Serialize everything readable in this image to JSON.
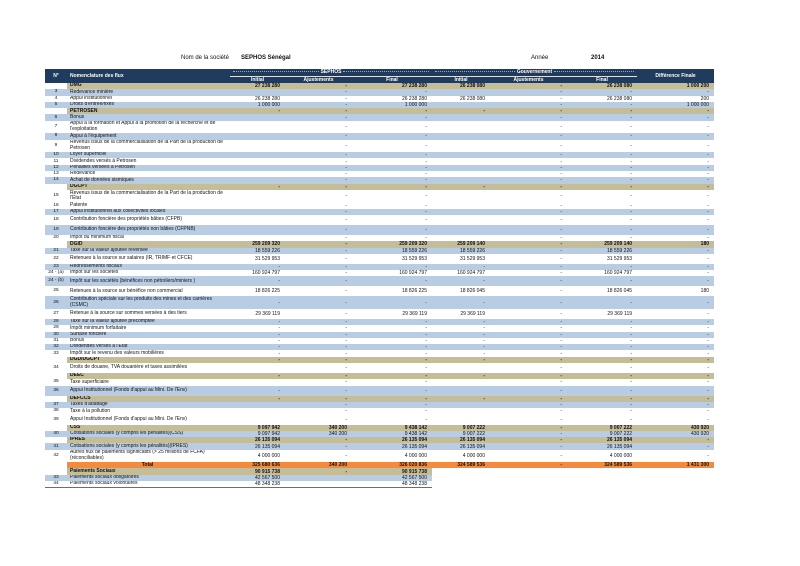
{
  "page": {
    "company_label": "Nom de la société",
    "company_value": "SEPHOS Sénégal",
    "year_label": "Année",
    "year_value": "2014"
  },
  "colors": {
    "header_navy": "#1F3B5D",
    "agency_tan": "#C4BD97",
    "stripe_blue": "#B8CCE4",
    "total_orange": "#F68A3C"
  },
  "table": {
    "header": {
      "num": "N°",
      "flux": "Nomenclature des flux",
      "sephos": "SEPHOS",
      "gouvernement": "Gouvernement",
      "difference": "Différence Finale",
      "sub": [
        "Initial",
        "Ajustements",
        "Final",
        "Initial",
        "Ajustements",
        "Final"
      ]
    },
    "rows": [
      {
        "num": "",
        "label": "DMG",
        "style": "group",
        "h": "s",
        "cells": [
          "27 238 280",
          "-",
          "27 238 280",
          "26 238 080",
          "-",
          "26 238 080",
          "1 000 200"
        ]
      },
      {
        "num": "3",
        "label": "Redevance minière",
        "style": "b",
        "h": "s",
        "cells": [
          "",
          "-",
          "-",
          "",
          "-",
          "-",
          "-"
        ]
      },
      {
        "num": "4",
        "label": "Appui institutionnel",
        "style": "w",
        "h": "s",
        "cells": [
          "26 238 280",
          "-",
          "26 238 280",
          "26 238 080",
          "-",
          "26 238 080",
          "200"
        ]
      },
      {
        "num": "5",
        "label": "Droits d'entrée/fixes",
        "style": "b",
        "h": "s",
        "cells": [
          "1 000 000",
          "-",
          "1 000 000",
          "",
          "-",
          "-",
          "1 000 000"
        ]
      },
      {
        "num": "",
        "label": "PETROSEN",
        "style": "group",
        "h": "s",
        "cells": [
          "-",
          "-",
          "-",
          "-",
          "-",
          "-",
          "-"
        ]
      },
      {
        "num": "6",
        "label": "Bonus",
        "style": "b",
        "h": "s",
        "cells": [
          "",
          "-",
          "-",
          "",
          "-",
          "-",
          "-"
        ]
      },
      {
        "num": "7",
        "label": "Appui à la formation et Appui à la promotion de la recherche et de l'exploitation",
        "style": "w",
        "h": "l",
        "cells": [
          "",
          "-",
          "-",
          "",
          "-",
          "-",
          "-"
        ]
      },
      {
        "num": "8",
        "label": "Appui à l'équipement",
        "style": "b",
        "h": "s",
        "cells": [
          "",
          "-",
          "-",
          "",
          "-",
          "-",
          "-"
        ]
      },
      {
        "num": "9",
        "label": "Revenus issus de la commercialisation de la Part de la production de Petrosen",
        "style": "w",
        "h": "l",
        "cells": [
          "",
          "-",
          "-",
          "",
          "-",
          "-",
          "-"
        ]
      },
      {
        "num": "10",
        "label": "Loyer superficiel",
        "style": "b",
        "h": "s",
        "cells": [
          "",
          "-",
          "-",
          "",
          "-",
          "-",
          "-"
        ]
      },
      {
        "num": "11",
        "label": "Dividendes versés à Petrosen",
        "style": "w",
        "h": "s",
        "cells": [
          "",
          "-",
          "-",
          "",
          "-",
          "-",
          "-"
        ]
      },
      {
        "num": "12",
        "label": "Pénalités versées à Petrosen",
        "style": "b",
        "h": "s",
        "cells": [
          "",
          "-",
          "-",
          "",
          "-",
          "-",
          "-"
        ]
      },
      {
        "num": "13",
        "label": "Redevance",
        "style": "w",
        "h": "s",
        "cells": [
          "",
          "-",
          "-",
          "",
          "-",
          "-",
          "-"
        ]
      },
      {
        "num": "14",
        "label": "Achat de données sismiques",
        "style": "b",
        "h": "s",
        "cells": [
          "",
          "-",
          "-",
          "",
          "-",
          "-",
          "-"
        ]
      },
      {
        "num": "",
        "label": "DGCPT",
        "style": "group",
        "h": "s",
        "cells": [
          "-",
          "-",
          "-",
          "-",
          "-",
          "-",
          "-"
        ]
      },
      {
        "num": "15",
        "label": "Revenus issus de la commercialisation de la Part de la production de l'État",
        "style": "w",
        "h": "l",
        "cells": [
          "",
          "-",
          "-",
          "",
          "-",
          "-",
          "-"
        ]
      },
      {
        "num": "16",
        "label": "Patente",
        "style": "w",
        "h": "s",
        "cells": [
          "",
          "-",
          "-",
          "",
          "-",
          "-",
          "-"
        ]
      },
      {
        "num": "17",
        "label": "Appui institutionnel aux collectivités locales",
        "style": "b",
        "h": "s",
        "cells": [
          "",
          "-",
          "-",
          "",
          "-",
          "-",
          "-"
        ]
      },
      {
        "num": "18",
        "label": "Contribution foncière des propriétés bâties (CFPB)",
        "style": "w",
        "h": "m",
        "cells": [
          "",
          "-",
          "-",
          "",
          "-",
          "-",
          "-"
        ]
      },
      {
        "num": "19",
        "label": "Contribution foncière des propriétés non bâties (CFPNB)",
        "style": "b",
        "h": "m",
        "cells": [
          "",
          "-",
          "-",
          "",
          "-",
          "-",
          "-"
        ]
      },
      {
        "num": "20",
        "label": "Impôt du minimum fiscal",
        "style": "w",
        "h": "s",
        "cells": [
          "",
          "-",
          "-",
          "",
          "-",
          "-",
          "-"
        ]
      },
      {
        "num": "",
        "label": "DGID",
        "style": "group",
        "h": "s",
        "cells": [
          "259 209 320",
          "-",
          "259 209 320",
          "259 209 140",
          "-",
          "259 209 140",
          "180"
        ]
      },
      {
        "num": "21",
        "label": "Taxe sur la valeur ajoutée reversée",
        "style": "b",
        "h": "s",
        "cells": [
          "18 559 226",
          "-",
          "18 559 226",
          "18 559 226",
          "-",
          "18 559 226",
          "-"
        ]
      },
      {
        "num": "22",
        "label": "Retenues à la source sur salaires (IR, TRIMF et CFCE)",
        "style": "w",
        "h": "m",
        "cells": [
          "31 529 953",
          "-",
          "31 529 953",
          "31 529 953",
          "-",
          "31 529 953",
          "-"
        ]
      },
      {
        "num": "23",
        "label": "Redressements fiscaux",
        "style": "b",
        "h": "s",
        "cells": [
          "-",
          "-",
          "-",
          "-",
          "-",
          "-",
          "-"
        ]
      },
      {
        "num": "24 - (a)",
        "label": "Impôt sur les sociétés",
        "style": "w",
        "h": "s",
        "cells": [
          "160 924 797",
          "-",
          "160 924 797",
          "160 924 797",
          "-",
          "160 924 797",
          "-"
        ]
      },
      {
        "num": "24 - (b)",
        "label": "Impôt sur les sociétés (bénéfices non pétroliers/miniers )",
        "style": "b",
        "h": "m",
        "cells": [
          "-",
          "-",
          "-",
          "-",
          "-",
          "-",
          "-"
        ]
      },
      {
        "num": "25",
        "label": "Retenues à la source sur bénéfice non commercial",
        "style": "w",
        "h": "m",
        "cells": [
          "18 826 225",
          "-",
          "18 826 225",
          "18 826 045",
          "-",
          "18 826 045",
          "180"
        ]
      },
      {
        "num": "26",
        "label": "Contribution spéciale sur les produits des mines et des carrières (CSMC)",
        "style": "b",
        "h": "l",
        "cells": [
          "-",
          "-",
          "-",
          "-",
          "-",
          "-",
          "-"
        ]
      },
      {
        "num": "27",
        "label": "Retenue à la source sur sommes versées à des tiers",
        "style": "w",
        "h": "m",
        "cells": [
          "29 369 119",
          "-",
          "29 369 119",
          "29 369 119",
          "-",
          "29 369 119",
          "-"
        ]
      },
      {
        "num": "28",
        "label": "Taxe sur la valeur ajoutée précomptée",
        "style": "b",
        "h": "s",
        "cells": [
          "-",
          "-",
          "-",
          "-",
          "-",
          "-",
          "-"
        ]
      },
      {
        "num": "29",
        "label": "Impôt minimum forfaitaire",
        "style": "w",
        "h": "s",
        "cells": [
          "-",
          "-",
          "-",
          "-",
          "-",
          "-",
          "-"
        ]
      },
      {
        "num": "30",
        "label": "Surtaxe foncière",
        "style": "b",
        "h": "s",
        "cells": [
          "-",
          "-",
          "-",
          "-",
          "-",
          "-",
          "-"
        ]
      },
      {
        "num": "31",
        "label": "Bonus",
        "style": "w",
        "h": "s",
        "cells": [
          "-",
          "-",
          "-",
          "-",
          "-",
          "-",
          "-"
        ]
      },
      {
        "num": "32",
        "label": "Dividendes versés à l'Etat",
        "style": "b",
        "h": "s",
        "cells": [
          "-",
          "-",
          "-",
          "-",
          "-",
          "-",
          "-"
        ]
      },
      {
        "num": "33",
        "label": "Impôt sur le revenu des valeurs mobilières",
        "style": "w",
        "h": "s",
        "cells": [
          "-",
          "-",
          "-",
          "-",
          "-",
          "-",
          "-"
        ]
      },
      {
        "num": "",
        "label": "DGD/DGCPT",
        "style": "group",
        "h": "s",
        "cells": [
          "-",
          "-",
          "-",
          "-",
          "-",
          "-",
          "-"
        ]
      },
      {
        "num": "34",
        "label": "Droits de douane, TVA douanière et taxes assimilées",
        "style": "w",
        "h": "m",
        "cells": [
          "",
          "-",
          "-",
          "",
          "-",
          "-",
          "-"
        ]
      },
      {
        "num": "",
        "label": "DEEC",
        "style": "group",
        "h": "s",
        "cells": [
          "-",
          "-",
          "-",
          "-",
          "-",
          "-",
          "-"
        ]
      },
      {
        "num": "35",
        "label": "Taxe superficiaire",
        "style": "w",
        "h": "s",
        "cells": [
          "",
          "-",
          "-",
          "",
          "-",
          "-",
          "-"
        ]
      },
      {
        "num": "36",
        "label": "Appui Institutionnel (Fonds d'appui au Mini. De l'Env)",
        "style": "b",
        "h": "m",
        "cells": [
          "-",
          "-",
          "-",
          "",
          "-",
          "-",
          "-"
        ]
      },
      {
        "num": "",
        "label": "DEFCCS",
        "style": "group",
        "h": "s",
        "cells": [
          "-",
          "-",
          "-",
          "-",
          "-",
          "-",
          "-"
        ]
      },
      {
        "num": "37",
        "label": "Taxes d'abattage",
        "style": "b",
        "h": "s",
        "cells": [
          "",
          "-",
          "-",
          "",
          "-",
          "-",
          "-"
        ]
      },
      {
        "num": "38",
        "label": "Taxe à la pollution",
        "style": "w",
        "h": "s",
        "cells": [
          "",
          "-",
          "-",
          "",
          "-",
          "-",
          "-"
        ]
      },
      {
        "num": "39",
        "label": "Appui Institutionnel (Fonds d'appui au Mini. De l'Env)",
        "style": "w",
        "h": "m",
        "cells": [
          "",
          "-",
          "-",
          "",
          "-",
          "-",
          "-"
        ]
      },
      {
        "num": "",
        "label": "CSS",
        "style": "group",
        "h": "s",
        "cells": [
          "9 097 942",
          "340 200",
          "9 438 142",
          "9 007 222",
          "-",
          "9 007 222",
          "430 920"
        ]
      },
      {
        "num": "40",
        "label": "Cotisations sociales (y compris les pénalités)(CSS)",
        "style": "b",
        "h": "s",
        "cells": [
          "9 097 942",
          "340 200",
          "9 438 142",
          "9 007 222",
          "-",
          "9 007 222",
          "430 920"
        ]
      },
      {
        "num": "",
        "label": "IPRES",
        "style": "group",
        "h": "s",
        "cells": [
          "26 135 094",
          "-",
          "26 135 094",
          "26 135 094",
          "-",
          "26 135 094",
          "-"
        ]
      },
      {
        "num": "41",
        "label": "Cotisations sociales (y compris les pénalités)(IPRES)",
        "style": "b",
        "h": "s",
        "cells": [
          "26 135 094",
          "-",
          "26 135 094",
          "26 135 094",
          "-",
          "26 135 094",
          "-"
        ]
      },
      {
        "num": "42",
        "label": "Autres flux de paiements significatifs (> 25 millions de  FCFA) (réconciliables)",
        "style": "w",
        "h": "l",
        "cells": [
          "4 000 000",
          "-",
          "4 000 000",
          "4 000 000",
          "-",
          "4 000 000",
          "-"
        ]
      },
      {
        "num": "",
        "label": "Total",
        "style": "total",
        "h": "s",
        "cells": [
          "325 680 636",
          "340 200",
          "326 020 836",
          "324 589 536",
          "-",
          "324 589 536",
          "1 431 300"
        ]
      },
      {
        "num": "",
        "label": "Paiements Sociaux",
        "style": "social-head",
        "h": "s",
        "cells": [
          "90 915 738",
          "-",
          "90 915 738",
          "",
          "",
          "",
          ""
        ]
      },
      {
        "num": "43",
        "label": "Paiements sociaux obligatoires",
        "style": "social-b",
        "h": "s",
        "cells": [
          "42 567 500",
          "",
          "42 567 500",
          "",
          "",
          "",
          ""
        ]
      },
      {
        "num": "44",
        "label": "Paiements sociaux volontaires",
        "style": "social-w",
        "h": "s",
        "cells": [
          "48 348 238",
          "",
          "48 348 238",
          "",
          "",
          "",
          ""
        ]
      }
    ]
  }
}
